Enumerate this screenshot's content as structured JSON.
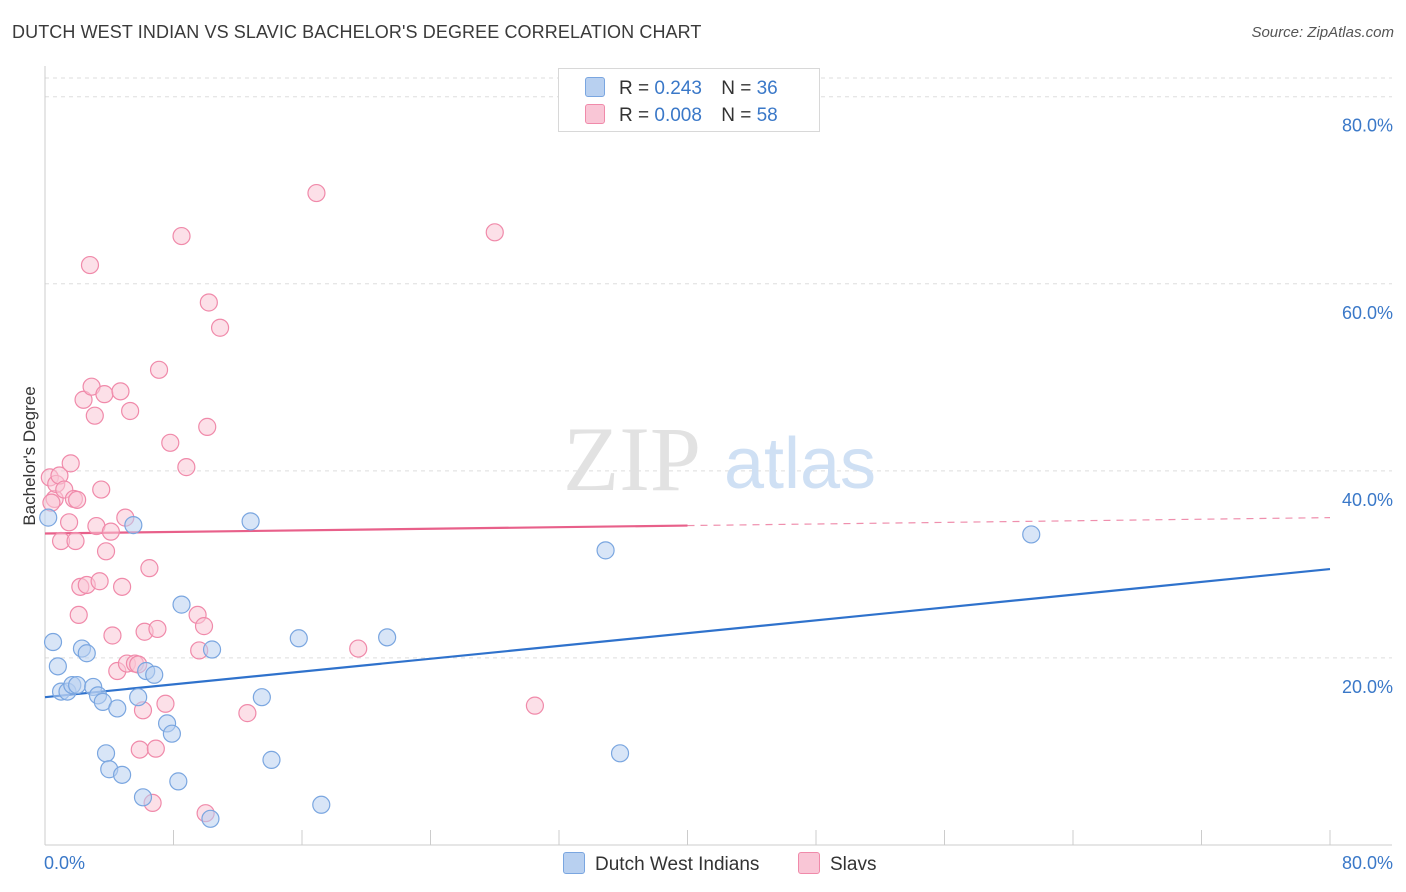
{
  "title": "DUTCH WEST INDIAN VS SLAVIC BACHELOR'S DEGREE CORRELATION CHART",
  "source": "Source: ZipAtlas.com",
  "watermark": {
    "zip": "ZIP",
    "atlas": "atlas"
  },
  "legend": {
    "series1": {
      "r_label": "R =",
      "r_value": "0.243",
      "n_label": "N =",
      "n_value": "36"
    },
    "series2": {
      "r_label": "R =",
      "r_value": "0.008",
      "n_label": "N =",
      "n_value": "58"
    }
  },
  "bottom_legend": {
    "series1": "Dutch West Indians",
    "series2": "Slavs"
  },
  "colors": {
    "blue_fill": "#b8d0f0",
    "blue_stroke": "#7aa6e0",
    "blue_line": "#2f72cc",
    "pink_fill": "#f9c6d6",
    "pink_stroke": "#f08aaa",
    "pink_line": "#e8608a",
    "axis_text": "#3a78c8",
    "grid": "#dddddd"
  },
  "chart_data": {
    "type": "scatter",
    "title": "DUTCH WEST INDIAN VS SLAVIC BACHELOR'S DEGREE CORRELATION CHART",
    "xlabel": "",
    "ylabel": "Bachelor's Degree",
    "xlim": [
      0,
      80
    ],
    "ylim": [
      0,
      82
    ],
    "x_tick_labels": [
      "0.0%",
      "80.0%"
    ],
    "y_ticks": [
      20,
      40,
      60,
      80
    ],
    "y_tick_labels": [
      "20.0%",
      "40.0%",
      "60.0%",
      "80.0%"
    ],
    "grid": true,
    "series": [
      {
        "name": "Dutch West Indians",
        "R": 0.243,
        "N": 36,
        "trend": {
          "x0": 0,
          "y0": 15.8,
          "x1": 80,
          "y1": 29.5,
          "dashed_from": null
        },
        "points": [
          [
            0.2,
            35.0
          ],
          [
            0.5,
            21.7
          ],
          [
            0.8,
            19.1
          ],
          [
            1.0,
            16.4
          ],
          [
            1.4,
            16.4
          ],
          [
            1.7,
            17.1
          ],
          [
            2.0,
            17.1
          ],
          [
            2.3,
            21.0
          ],
          [
            2.6,
            20.5
          ],
          [
            3.0,
            16.9
          ],
          [
            3.3,
            16.0
          ],
          [
            3.6,
            15.3
          ],
          [
            3.8,
            9.8
          ],
          [
            4.0,
            8.1
          ],
          [
            4.5,
            14.6
          ],
          [
            4.8,
            7.5
          ],
          [
            5.5,
            34.2
          ],
          [
            5.8,
            15.8
          ],
          [
            6.1,
            5.1
          ],
          [
            6.3,
            18.6
          ],
          [
            6.8,
            18.2
          ],
          [
            7.6,
            13.0
          ],
          [
            7.9,
            11.9
          ],
          [
            8.3,
            6.8
          ],
          [
            8.5,
            25.7
          ],
          [
            10.3,
            2.8
          ],
          [
            10.4,
            20.9
          ],
          [
            12.8,
            34.6
          ],
          [
            13.5,
            15.8
          ],
          [
            14.1,
            9.1
          ],
          [
            15.8,
            22.1
          ],
          [
            17.2,
            4.3
          ],
          [
            21.3,
            22.2
          ],
          [
            34.9,
            31.5
          ],
          [
            35.8,
            9.8
          ],
          [
            61.4,
            33.2
          ]
        ]
      },
      {
        "name": "Slavs",
        "R": 0.008,
        "N": 58,
        "trend": {
          "x0": 0,
          "y0": 33.3,
          "x1": 80,
          "y1": 35.0,
          "dashed_from": 40
        },
        "points": [
          [
            0.3,
            39.3
          ],
          [
            0.6,
            37.0
          ],
          [
            0.7,
            38.6
          ],
          [
            0.9,
            39.5
          ],
          [
            1.0,
            32.5
          ],
          [
            1.2,
            38.0
          ],
          [
            1.5,
            34.5
          ],
          [
            1.6,
            40.8
          ],
          [
            1.8,
            37.0
          ],
          [
            1.9,
            32.5
          ],
          [
            2.1,
            24.6
          ],
          [
            2.2,
            27.6
          ],
          [
            2.4,
            47.6
          ],
          [
            2.6,
            27.8
          ],
          [
            2.8,
            62.0
          ],
          [
            2.9,
            49.0
          ],
          [
            3.1,
            45.9
          ],
          [
            3.2,
            34.1
          ],
          [
            3.4,
            28.2
          ],
          [
            3.5,
            38.0
          ],
          [
            3.7,
            48.2
          ],
          [
            3.8,
            31.4
          ],
          [
            4.1,
            33.5
          ],
          [
            4.2,
            22.4
          ],
          [
            4.5,
            18.6
          ],
          [
            4.7,
            48.5
          ],
          [
            4.8,
            27.6
          ],
          [
            5.0,
            35.0
          ],
          [
            5.1,
            19.4
          ],
          [
            5.3,
            46.4
          ],
          [
            5.6,
            19.4
          ],
          [
            5.8,
            19.3
          ],
          [
            5.9,
            10.2
          ],
          [
            6.1,
            14.4
          ],
          [
            6.2,
            22.8
          ],
          [
            6.5,
            29.6
          ],
          [
            6.7,
            4.5
          ],
          [
            6.9,
            10.3
          ],
          [
            7.0,
            23.1
          ],
          [
            7.1,
            50.8
          ],
          [
            7.5,
            15.1
          ],
          [
            7.8,
            43.0
          ],
          [
            8.5,
            65.1
          ],
          [
            8.8,
            40.4
          ],
          [
            9.5,
            24.6
          ],
          [
            9.6,
            20.8
          ],
          [
            9.9,
            23.4
          ],
          [
            10.0,
            3.4
          ],
          [
            10.1,
            44.7
          ],
          [
            10.2,
            58.0
          ],
          [
            10.9,
            55.3
          ],
          [
            12.6,
            14.1
          ],
          [
            16.9,
            69.7
          ],
          [
            19.5,
            21.0
          ],
          [
            28.0,
            65.5
          ],
          [
            30.5,
            14.9
          ],
          [
            0.4,
            36.6
          ],
          [
            2.0,
            36.9
          ]
        ]
      }
    ]
  }
}
